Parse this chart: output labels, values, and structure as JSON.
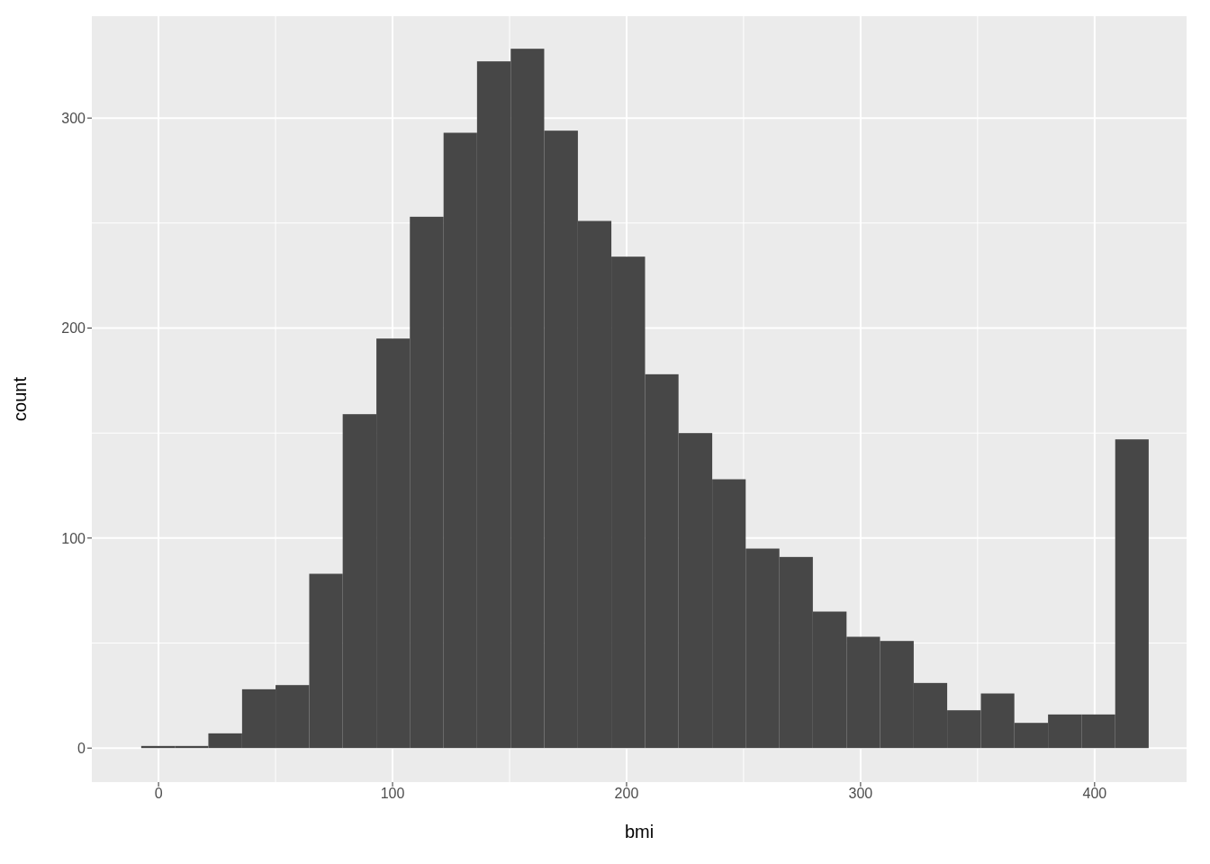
{
  "chart_data": {
    "type": "histogram",
    "xlabel": "bmi",
    "ylabel": "count",
    "bins": [
      -7.4,
      7.0,
      21.3,
      35.7,
      50.0,
      64.4,
      78.7,
      93.1,
      107.4,
      121.8,
      136.1,
      150.5,
      164.8,
      179.2,
      193.5,
      207.9,
      222.2,
      236.6,
      250.9,
      265.3,
      279.6,
      294.0,
      308.3,
      322.7,
      337.0,
      351.4,
      365.7,
      380.1,
      394.4,
      408.8,
      423.1
    ],
    "values": [
      1,
      1,
      7,
      28,
      30,
      83,
      159,
      195,
      253,
      293,
      327,
      333,
      294,
      251,
      234,
      178,
      150,
      128,
      95,
      91,
      65,
      53,
      51,
      31,
      18,
      26,
      12,
      16,
      16,
      147
    ],
    "color": "#474747",
    "xlim": [
      -28.5,
      439.3
    ],
    "xticks": [
      0,
      100,
      200,
      300,
      400
    ],
    "ylim": [
      -16.2,
      348.5
    ],
    "yticks": [
      0,
      100,
      200,
      300
    ],
    "grid": true
  }
}
